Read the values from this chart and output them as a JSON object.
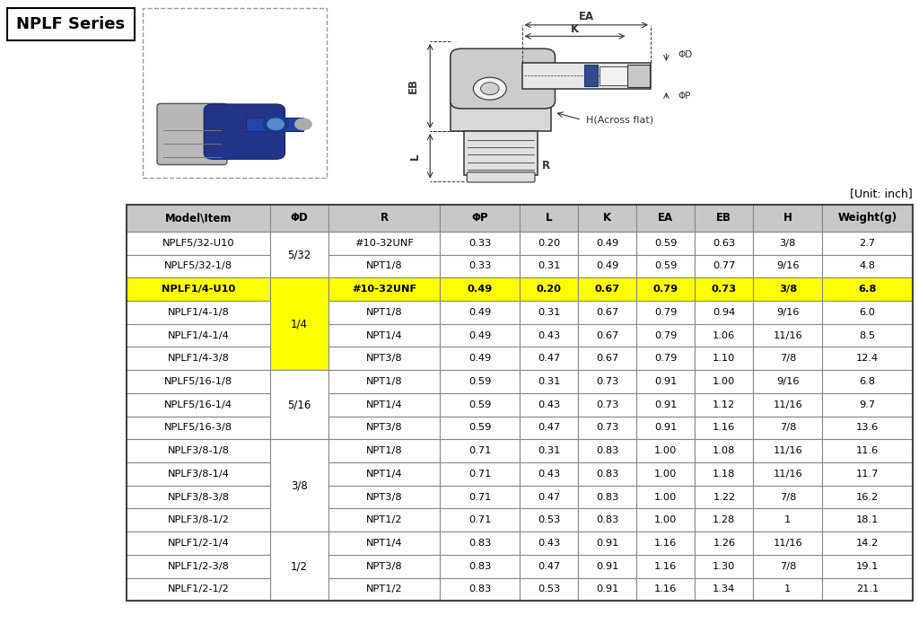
{
  "title": "NPLF Series",
  "unit_label": "[Unit: inch]",
  "highlighted_row_index": 2,
  "highlight_color": "#FFFF00",
  "header_bg_color": "#C8C8C8",
  "columns": [
    "Model\\Item",
    "ΦD",
    "R",
    "ΦP",
    "L",
    "K",
    "EA",
    "EB",
    "H",
    "Weight(g)"
  ],
  "col_widths": [
    1.35,
    0.55,
    1.05,
    0.75,
    0.55,
    0.55,
    0.55,
    0.55,
    0.65,
    0.85
  ],
  "rows": [
    [
      "NPLF5/32-U10",
      "5/32",
      "#10-32UNF",
      "0.33",
      "0.20",
      "0.49",
      "0.59",
      "0.63",
      "3/8",
      "2.7"
    ],
    [
      "NPLF5/32-1/8",
      "5/32",
      "NPT1/8",
      "0.33",
      "0.31",
      "0.49",
      "0.59",
      "0.77",
      "9/16",
      "4.8"
    ],
    [
      "NPLF1/4-U10",
      "",
      "#10-32UNF",
      "0.49",
      "0.20",
      "0.67",
      "0.79",
      "0.73",
      "3/8",
      "6.8"
    ],
    [
      "NPLF1/4-1/8",
      "1/4",
      "NPT1/8",
      "0.49",
      "0.31",
      "0.67",
      "0.79",
      "0.94",
      "9/16",
      "6.0"
    ],
    [
      "NPLF1/4-1/4",
      "1/4",
      "NPT1/4",
      "0.49",
      "0.43",
      "0.67",
      "0.79",
      "1.06",
      "11/16",
      "8.5"
    ],
    [
      "NPLF1/4-3/8",
      "1/4",
      "NPT3/8",
      "0.49",
      "0.47",
      "0.67",
      "0.79",
      "1.10",
      "7/8",
      "12.4"
    ],
    [
      "NPLF5/16-1/8",
      "5/16",
      "NPT1/8",
      "0.59",
      "0.31",
      "0.73",
      "0.91",
      "1.00",
      "9/16",
      "6.8"
    ],
    [
      "NPLF5/16-1/4",
      "5/16",
      "NPT1/4",
      "0.59",
      "0.43",
      "0.73",
      "0.91",
      "1.12",
      "11/16",
      "9.7"
    ],
    [
      "NPLF5/16-3/8",
      "5/16",
      "NPT3/8",
      "0.59",
      "0.47",
      "0.73",
      "0.91",
      "1.16",
      "7/8",
      "13.6"
    ],
    [
      "NPLF3/8-1/8",
      "3/8",
      "NPT1/8",
      "0.71",
      "0.31",
      "0.83",
      "1.00",
      "1.08",
      "11/16",
      "11.6"
    ],
    [
      "NPLF3/8-1/4",
      "3/8",
      "NPT1/4",
      "0.71",
      "0.43",
      "0.83",
      "1.00",
      "1.18",
      "11/16",
      "11.7"
    ],
    [
      "NPLF3/8-3/8",
      "3/8",
      "NPT3/8",
      "0.71",
      "0.47",
      "0.83",
      "1.00",
      "1.22",
      "7/8",
      "16.2"
    ],
    [
      "NPLF3/8-1/2",
      "3/8",
      "NPT1/2",
      "0.71",
      "0.53",
      "0.83",
      "1.00",
      "1.28",
      "1",
      "18.1"
    ],
    [
      "NPLF1/2-1/4",
      "1/2",
      "NPT1/4",
      "0.83",
      "0.43",
      "0.91",
      "1.16",
      "1.26",
      "11/16",
      "14.2"
    ],
    [
      "NPLF1/2-3/8",
      "1/2",
      "NPT3/8",
      "0.83",
      "0.47",
      "0.91",
      "1.16",
      "1.30",
      "7/8",
      "19.1"
    ],
    [
      "NPLF1/2-1/2",
      "1/2",
      "NPT1/2",
      "0.83",
      "0.53",
      "0.91",
      "1.16",
      "1.34",
      "1",
      "21.1"
    ]
  ],
  "merged_cells": [
    {
      "rows": [
        0,
        1
      ],
      "col": 1,
      "value": "5/32"
    },
    {
      "rows": [
        2,
        3,
        4,
        5
      ],
      "col": 1,
      "value": "1/4"
    },
    {
      "rows": [
        6,
        7,
        8
      ],
      "col": 1,
      "value": "5/16"
    },
    {
      "rows": [
        9,
        10,
        11,
        12
      ],
      "col": 1,
      "value": "3/8"
    },
    {
      "rows": [
        13,
        14,
        15
      ],
      "col": 1,
      "value": "1/2"
    }
  ],
  "table_bg": "#FFFFFF",
  "border_color": "#888888",
  "text_color": "#000000",
  "dim_color": "#222222",
  "schematic": {
    "hex_body_color": "#d8d8d8",
    "stem_color": "#e0e0e0",
    "elbow_color": "#cccccc",
    "tube_color": "#e8e8e8",
    "collet_color": "#334a8a",
    "label_EA": "EA",
    "label_K": "K",
    "label_EB": "EB",
    "label_L": "L",
    "label_R": "R",
    "label_H": "H(Across flat)",
    "label_PhiD": "ΦD",
    "label_PhiP": "ΦP"
  }
}
